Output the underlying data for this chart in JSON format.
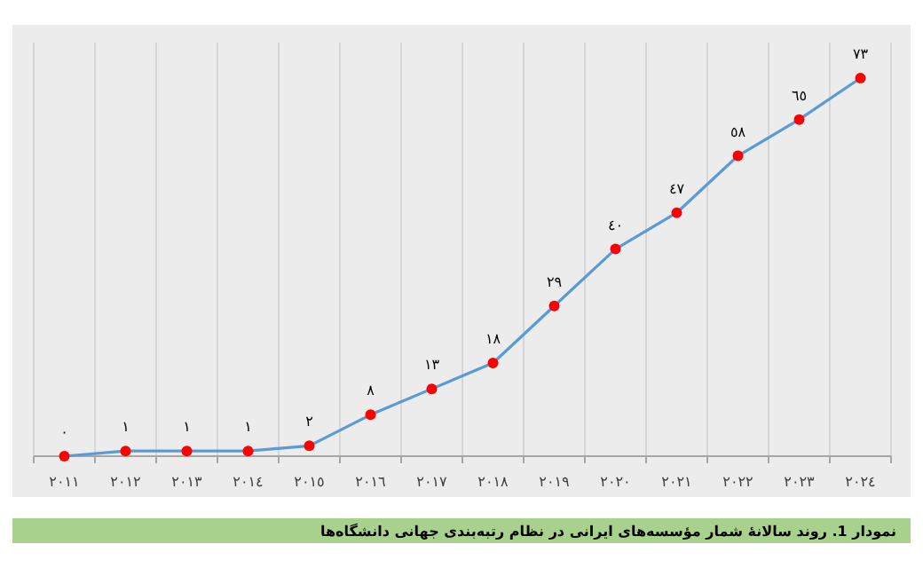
{
  "chart_data": {
    "type": "line",
    "categories": [
      "٢٠١١",
      "٢٠١٢",
      "٢٠١٣",
      "٢٠١٤",
      "٢٠١٥",
      "٢٠١٦",
      "٢٠١٧",
      "٢٠١٨",
      "٢٠١٩",
      "٢٠٢٠",
      "٢٠٢١",
      "٢٠٢٢",
      "٢٠٢٣",
      "٢٠٢٤"
    ],
    "series": [
      {
        "color": "#5b9bd5",
        "values": [
          0,
          1,
          1,
          1,
          2,
          8,
          13,
          18,
          29,
          40,
          47,
          58,
          65,
          73
        ],
        "colors": [
          "#ff0000",
          "#ff0000",
          "#ff0000",
          "#ff0000",
          "#ff0000",
          "#ff0000",
          "#ff0000",
          "#ff0000",
          "#ff0000",
          "#ff0000",
          "#ff0000",
          "#ff0000",
          "#ff0000",
          "#ff0000"
        ],
        "value_labels": [
          "٠",
          "١",
          "١",
          "١",
          "٢",
          "٨",
          "١٣",
          "١٨",
          "٢٩",
          "٤٠",
          "٤٧",
          "٥٨",
          "٦٥",
          "٧٣"
        ]
      }
    ],
    "marker": "circle",
    "line_style": "solid",
    "grid": "x",
    "tick_labels": "x",
    "annotations": [
      "نمودار 1. روند سالانهٔ شمار مؤسسه‌های ایرانی در نظام رتبه‌بندی جهانی دانشگاه‌ها"
    ]
  }
}
